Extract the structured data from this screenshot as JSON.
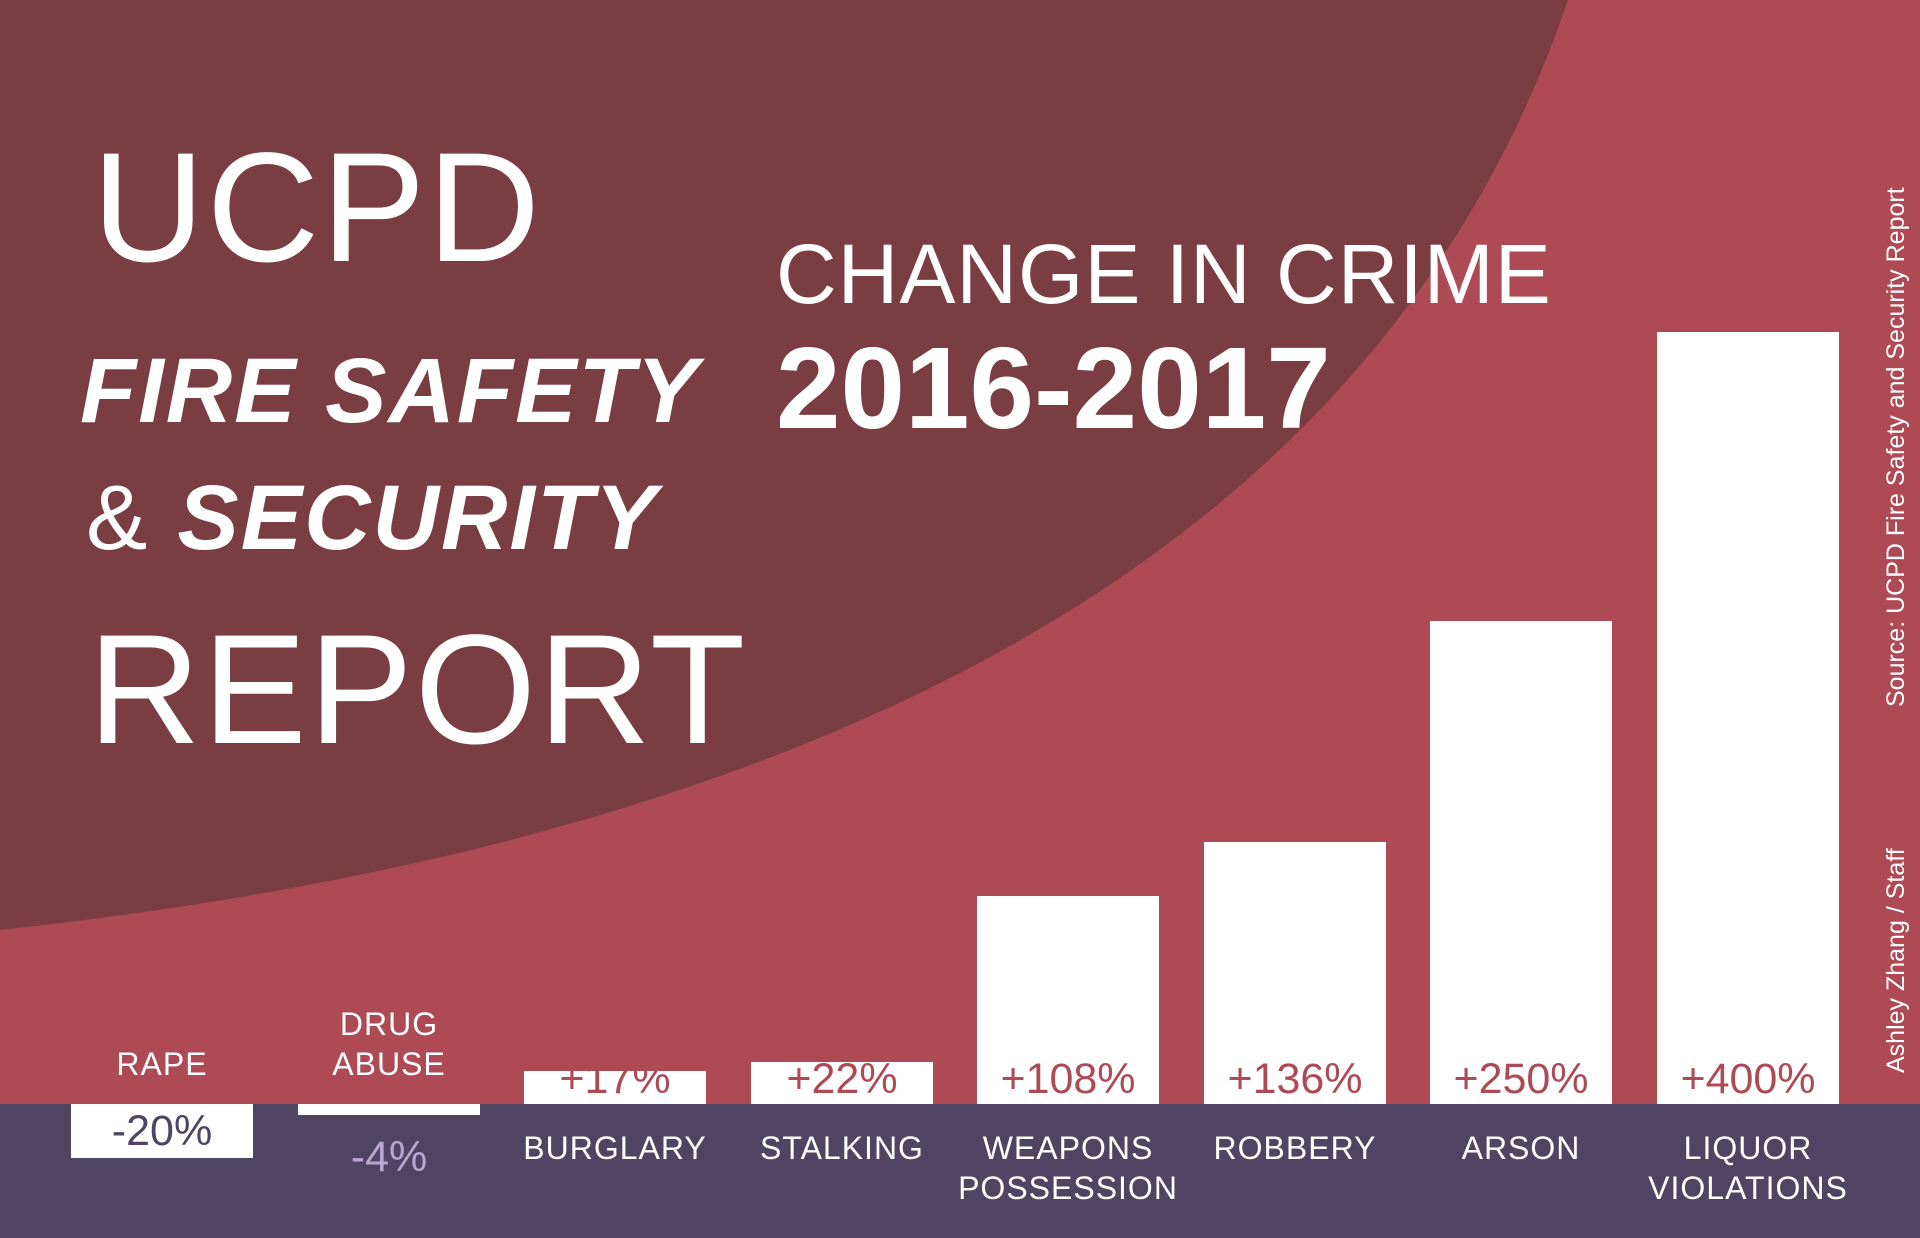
{
  "title": {
    "line1": "UCPD",
    "line2": "FIRE SAFETY",
    "line3_amp": "&",
    "line3": "SECURITY",
    "line4": "REPORT"
  },
  "subtitle": "CHANGE IN CRIME",
  "years": "2016-2017",
  "source": "Source: UCPD Fire Safety and Security Report",
  "credit": "Ashley Zhang / Staff",
  "colors": {
    "background": "#ad4a54",
    "dark_arc": "#7a3d42",
    "baseline_band": "#4f4562",
    "bar_fill": "#ffffff",
    "value_text": "#ad4a54",
    "negative_value_text": "#4f4562",
    "muted_value_text": "#b9a7d2"
  },
  "chart_data": {
    "type": "bar",
    "categories": [
      "RAPE",
      "DRUG\nABUSE",
      "BURGLARY",
      "STALKING",
      "WEAPONS\nPOSSESSION",
      "ROBBERY",
      "ARSON",
      "LIQUOR\nVIOLATIONS"
    ],
    "values": [
      -20,
      -4,
      17,
      22,
      108,
      136,
      250,
      400
    ],
    "labels": [
      "-20%",
      "-4%",
      "+17%",
      "+22%",
      "+108%",
      "+136%",
      "+250%",
      "+400%"
    ],
    "ylim": [
      -20,
      400
    ],
    "ylabel": "",
    "xlabel": "",
    "grid": false
  }
}
